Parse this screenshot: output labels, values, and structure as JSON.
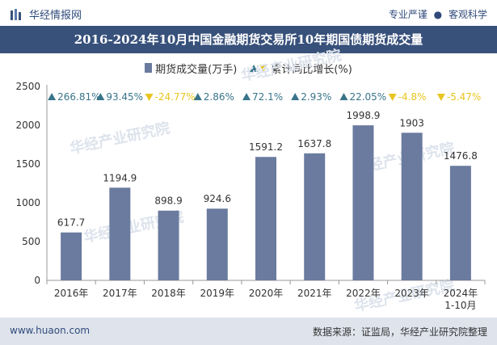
{
  "header": {
    "brand": "华经情报网",
    "tagline_left": "专业严谨",
    "tagline_sep": "●",
    "tagline_right": "客观科学"
  },
  "title": "2016-2024年10月中国金融期货交易所10年期国债期货成交量",
  "legend": {
    "bar_label": "期货成交量(万手)",
    "growth_label": "累计同比增长(%)"
  },
  "watermark": "华经产业研究院",
  "footer": {
    "site": "www.huaon.com",
    "source_label": "数据来源：",
    "source_text": "证监局，华经产业研究院整理"
  },
  "colors": {
    "bar": "#6a7b9f",
    "up": "#38748a",
    "down": "#e8c520",
    "header": "#38517b"
  },
  "chart_data": {
    "type": "bar",
    "categories": [
      "2016年",
      "2017年",
      "2018年",
      "2019年",
      "2020年",
      "2021年",
      "2022年",
      "2023年",
      "2024年\n1-10月"
    ],
    "series": [
      {
        "name": "期货成交量(万手)",
        "values": [
          617.7,
          1194.9,
          898.9,
          924.6,
          1591.2,
          1637.8,
          1998.9,
          1903,
          1476.8
        ]
      }
    ],
    "growth": {
      "name": "累计同比增长(%)",
      "labels": [
        "266.81%",
        "93.45%",
        "-24.77%",
        "2.86%",
        "72.1%",
        "2.93%",
        "22.05%",
        "-4.8%",
        "-5.47%"
      ],
      "values": [
        266.81,
        93.45,
        -24.77,
        2.86,
        72.1,
        2.93,
        22.05,
        -4.8,
        -5.47
      ]
    },
    "yticks": [
      0,
      500,
      1000,
      1500,
      2000,
      2500
    ],
    "ylim": [
      0,
      2500
    ],
    "grid": false,
    "legend_position": "top-center"
  }
}
